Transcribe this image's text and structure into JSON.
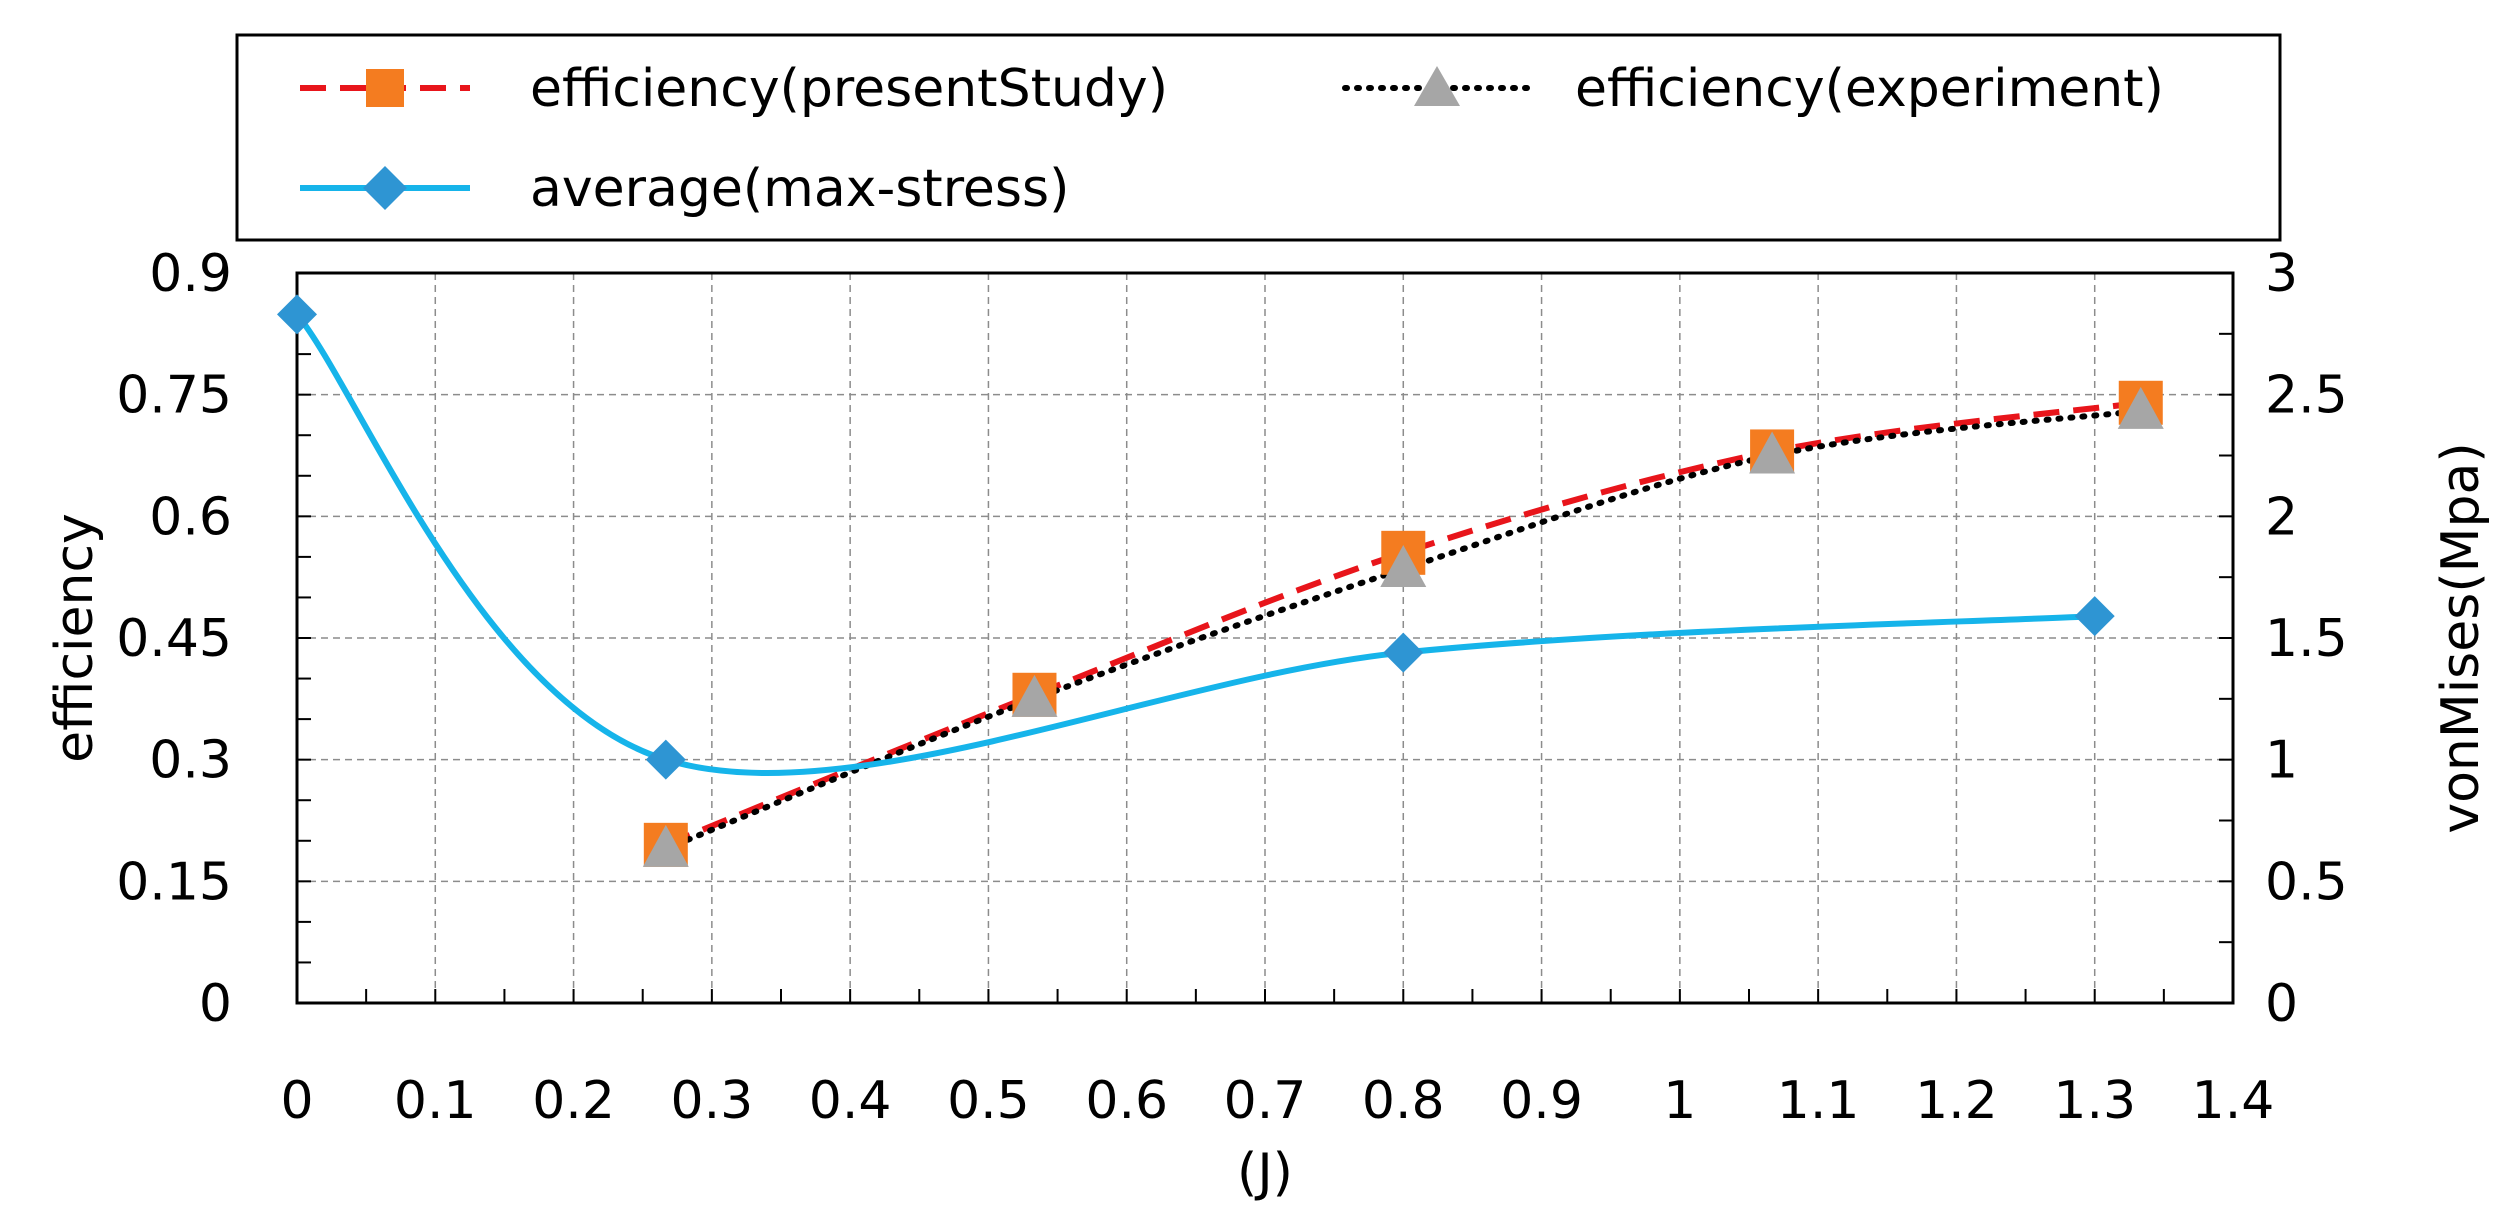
{
  "chart_data": {
    "type": "line",
    "xlabel": "(J)",
    "ylabel": "efficiency",
    "y2label": "vonMises(Mpa)",
    "xlim": [
      0,
      1.4
    ],
    "ylim": [
      0,
      0.9
    ],
    "y2lim": [
      0,
      3
    ],
    "x_ticks": [
      "0",
      "0.1",
      "0.2",
      "0.3",
      "0.4",
      "0.5",
      "0.6",
      "0.7",
      "0.8",
      "0.9",
      "1",
      "1.1",
      "1.2",
      "1.3",
      "1.4"
    ],
    "y_ticks": [
      "0",
      "0.15",
      "0.3",
      "0.45",
      "0.6",
      "0.75",
      "0.9"
    ],
    "y2_ticks": [
      "0",
      "0.5",
      "1",
      "1.5",
      "2",
      "2.5",
      "3"
    ],
    "grid": true,
    "legend_position": "top",
    "series": [
      {
        "name": "efficiency(presentStudy)",
        "axis": "left",
        "style": "dashed",
        "marker": "square",
        "color": "#e8151b",
        "marker_color": "#f47c20",
        "x": [
          0.2667,
          0.5333,
          0.8,
          1.0667,
          1.3333
        ],
        "values": [
          0.195,
          0.38,
          0.555,
          0.68,
          0.74
        ]
      },
      {
        "name": "efficiency(experiment)",
        "axis": "left",
        "style": "dotted",
        "marker": "triangle",
        "color": "#000000",
        "marker_color": "#a6a6a6",
        "x": [
          0.2667,
          0.5333,
          0.8,
          1.0667,
          1.3333
        ],
        "values": [
          0.19,
          0.375,
          0.535,
          0.675,
          0.73
        ]
      },
      {
        "name": "average(max-stress)",
        "axis": "right",
        "style": "solid",
        "marker": "diamond",
        "color": "#16b4ea",
        "marker_color": "#2e95d3",
        "x": [
          0,
          0.2667,
          0.8,
          1.3
        ],
        "values": [
          2.83,
          1.0,
          1.44,
          1.59
        ]
      }
    ]
  }
}
